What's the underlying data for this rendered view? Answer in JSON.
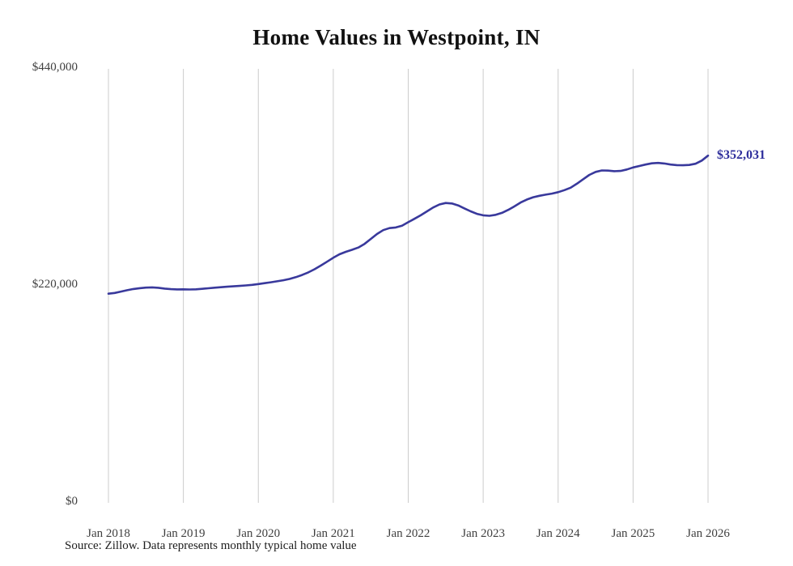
{
  "chart": {
    "title": "Home Values in Westpoint, IN",
    "latest_label": "$352,031",
    "source": "Source: Zillow. Data represents monthly typical home value",
    "colors": {
      "line": "#39399c",
      "annotation": "#2e2e9c",
      "grid": "#cccccc",
      "tick_text": "#3f3f3f"
    }
  },
  "chart_data": {
    "type": "line",
    "title": "Home Values in Westpoint, IN",
    "xlabel": "",
    "ylabel": "",
    "ylim": [
      0,
      440000
    ],
    "grid": "vertical-only",
    "legend": "none",
    "start_month": "2018-01",
    "frequency": "monthly",
    "y_ticks": [
      {
        "label": "$440,000",
        "value": 440000
      },
      {
        "label": "$220,000",
        "value": 220000
      },
      {
        "label": "$0",
        "value": 0
      }
    ],
    "x_tick_labels": [
      "Jan 2018",
      "Jan 2019",
      "Jan 2020",
      "Jan 2021",
      "Jan 2022",
      "Jan 2023",
      "Jan 2024",
      "Jan 2025",
      "Jan 2026"
    ],
    "latest_value": 352031,
    "series": [
      {
        "name": "Typical home value",
        "values": [
          212000,
          212800,
          214200,
          215600,
          216800,
          217600,
          218200,
          218400,
          218000,
          217200,
          216600,
          216400,
          216500,
          216300,
          216500,
          217000,
          217500,
          218100,
          218600,
          219100,
          219500,
          219900,
          220400,
          221000,
          221800,
          222700,
          223600,
          224600,
          225700,
          227000,
          228800,
          231000,
          233600,
          236800,
          240500,
          244500,
          248500,
          252000,
          254500,
          256500,
          258800,
          262500,
          267500,
          272500,
          276500,
          278500,
          279200,
          281000,
          284500,
          288000,
          291500,
          295500,
          299500,
          302500,
          304000,
          303500,
          301500,
          298500,
          295500,
          293000,
          291500,
          291000,
          292000,
          294000,
          297000,
          300500,
          304500,
          307500,
          309800,
          311300,
          312400,
          313500,
          315000,
          317000,
          319500,
          323500,
          328000,
          332500,
          335500,
          337000,
          336800,
          336200,
          336500,
          338000,
          340000,
          341500,
          343000,
          344200,
          344600,
          344000,
          343000,
          342400,
          342200,
          342600,
          343800,
          347000,
          352031
        ]
      }
    ]
  }
}
